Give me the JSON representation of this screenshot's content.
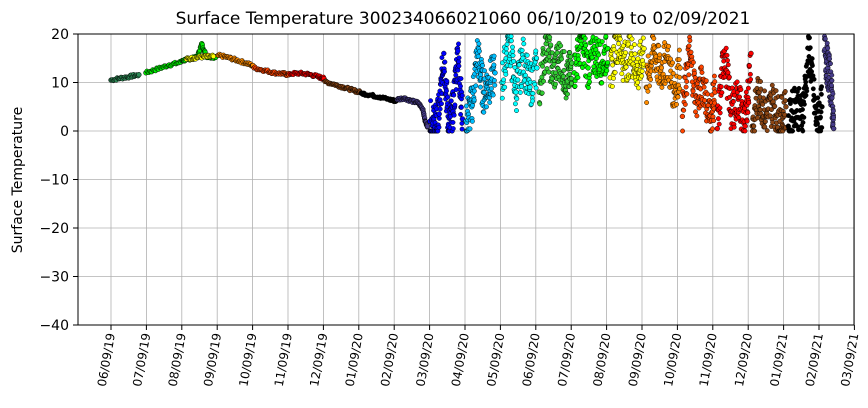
{
  "chart_data": {
    "type": "scatter",
    "title": "Surface Temperature 300234066021060  06/10/2019 to 02/09/2021",
    "xlabel": "",
    "ylabel": "Surface Temperature",
    "ylim": [
      -40,
      20
    ],
    "yticks": [
      "20",
      "10",
      "0",
      "−10",
      "−20",
      "−30",
      "−40"
    ],
    "xticks": [
      "06/09/19",
      "07/09/19",
      "08/09/19",
      "09/09/19",
      "10/09/19",
      "11/09/19",
      "12/09/19",
      "01/09/20",
      "02/09/20",
      "03/09/20",
      "04/09/20",
      "05/09/20",
      "06/09/20",
      "07/09/20",
      "08/09/20",
      "09/09/20",
      "10/09/20",
      "11/09/20",
      "12/09/20",
      "01/09/21",
      "02/09/21",
      "03/09/21"
    ],
    "grid": true,
    "legend": "none",
    "colors": {
      "jun_19": "#2e8b57",
      "jul_19": "#00ee00",
      "aug_19": "#ffff00",
      "sep_19": "#ff8c00",
      "oct_19": "#ff4500",
      "nov_19": "#ff0000",
      "dec_19": "#8b4513",
      "jan_20": "#000000",
      "feb_20": "#483d8b",
      "mar_20": "#0000ff",
      "apr_20": "#00bfff",
      "may_20": "#00ffff",
      "jun_20": "#32cd32",
      "jul_20": "#00ff00",
      "aug_20": "#ffff00",
      "sep_20": "#ff8c00",
      "oct_20": "#ff4500",
      "nov_20": "#ff0000",
      "dec_20": "#8b4513",
      "jan_21": "#000000",
      "feb_21": "#483d8b"
    },
    "series": [
      {
        "month": "2019-06",
        "color_key": "jun_19",
        "x": [
          0,
          8,
          16,
          24
        ],
        "y": [
          10.5,
          10.9,
          11.2,
          11.6
        ]
      },
      {
        "month": "2019-07",
        "color_key": "jul_19",
        "x": [
          30,
          40,
          50,
          60
        ],
        "y": [
          12.0,
          12.8,
          13.6,
          14.2
        ]
      },
      {
        "month": "2019-08",
        "color_key": "jul_19",
        "x": [
          61,
          66,
          70,
          74,
          78,
          82,
          86,
          90
        ],
        "y": [
          14.5,
          14.8,
          15.0,
          15.2,
          18.0,
          15.4,
          15.3,
          15.2
        ]
      },
      {
        "month": "2019-08b",
        "color_key": "aug_19",
        "x": [
          65,
          72,
          80,
          88
        ],
        "y": [
          14.8,
          15.1,
          15.3,
          15.4
        ]
      },
      {
        "month": "2019-09",
        "color_key": "sep_19",
        "x": [
          92,
          100,
          108,
          116,
          122
        ],
        "y": [
          15.6,
          15.2,
          14.6,
          14.0,
          13.5
        ]
      },
      {
        "month": "2019-10",
        "color_key": "oct_19",
        "x": [
          123,
          132,
          140,
          148,
          153
        ],
        "y": [
          13.0,
          12.5,
          12.0,
          11.8,
          11.6
        ]
      },
      {
        "month": "2019-11",
        "color_key": "nov_19",
        "x": [
          154,
          162,
          170,
          178,
          183
        ],
        "y": [
          11.8,
          11.9,
          11.7,
          11.2,
          10.8
        ]
      },
      {
        "month": "2019-12",
        "color_key": "dec_19",
        "x": [
          184,
          192,
          200,
          208,
          214
        ],
        "y": [
          10.2,
          9.6,
          9.0,
          8.4,
          8.0
        ]
      },
      {
        "month": "2020-01",
        "color_key": "jan_20",
        "x": [
          215,
          223,
          231,
          239,
          245
        ],
        "y": [
          7.8,
          7.4,
          7.0,
          6.5,
          6.2
        ]
      },
      {
        "month": "2020-02",
        "color_key": "feb_20",
        "x": [
          246,
          252,
          258,
          264,
          268,
          270,
          272
        ],
        "y": [
          6.5,
          6.8,
          6.2,
          5.8,
          4.5,
          2.0,
          1.0
        ]
      },
      {
        "month": "2020-03",
        "color_key": "mar_20",
        "x": [
          274,
          278,
          282,
          286,
          290,
          294,
          298,
          302
        ],
        "y": [
          2.0,
          0.5,
          3.5,
          16.0,
          1.0,
          4.0,
          16.5,
          2.5
        ]
      },
      {
        "month": "2020-04",
        "color_key": "apr_20",
        "x": [
          305,
          310,
          315,
          320,
          325,
          330
        ],
        "y": [
          2.0,
          5.0,
          16.0,
          8.0,
          10.0,
          12.0
        ]
      },
      {
        "month": "2020-05",
        "color_key": "may_20",
        "x": [
          336,
          342,
          348,
          354,
          360,
          366
        ],
        "y": [
          10.0,
          19.0,
          8.0,
          15.0,
          9.0,
          13.0
        ]
      },
      {
        "month": "2020-06",
        "color_key": "jun_20",
        "x": [
          368,
          374,
          380,
          386,
          392,
          396
        ],
        "y": [
          8.0,
          18.0,
          12.0,
          15.0,
          10.0,
          14.0
        ]
      },
      {
        "month": "2020-07",
        "color_key": "jul_20",
        "x": [
          398,
          404,
          410,
          416,
          422,
          427
        ],
        "y": [
          12.0,
          18.5,
          13.0,
          16.0,
          14.0,
          17.0
        ]
      },
      {
        "month": "2020-08",
        "color_key": "aug_20",
        "x": [
          429,
          435,
          441,
          447,
          453,
          458
        ],
        "y": [
          11.0,
          19.0,
          14.0,
          16.0,
          12.0,
          17.0
        ]
      },
      {
        "month": "2020-09",
        "color_key": "sep_20",
        "x": [
          460,
          466,
          472,
          478,
          484,
          489
        ],
        "y": [
          9.0,
          17.0,
          12.0,
          15.0,
          8.0,
          13.0
        ]
      },
      {
        "month": "2020-10",
        "color_key": "oct_20",
        "x": [
          491,
          497,
          503,
          509,
          515,
          519
        ],
        "y": [
          3.0,
          16.0,
          7.0,
          10.0,
          2.0,
          8.0
        ]
      },
      {
        "month": "2020-11",
        "color_key": "nov_20",
        "x": [
          521,
          527,
          533,
          539,
          545,
          550
        ],
        "y": [
          0.5,
          16.5,
          4.0,
          7.0,
          1.0,
          16.0
        ]
      },
      {
        "month": "2020-12",
        "color_key": "dec_20",
        "x": [
          551,
          557,
          563,
          569,
          575,
          580
        ],
        "y": [
          1.0,
          8.0,
          3.0,
          6.0,
          2.0,
          5.0
        ]
      },
      {
        "month": "2021-01",
        "color_key": "jan_21",
        "x": [
          582,
          588,
          594,
          600,
          606,
          611
        ],
        "y": [
          1.0,
          6.0,
          3.0,
          17.0,
          2.0,
          5.0
        ]
      },
      {
        "month": "2021-02",
        "color_key": "feb_21",
        "x": [
          613,
          616,
          619,
          621
        ],
        "y": [
          16.5,
          13.0,
          9.0,
          0.5
        ]
      }
    ]
  }
}
